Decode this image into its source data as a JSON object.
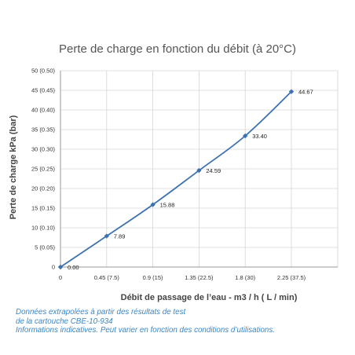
{
  "chart_data": {
    "type": "line",
    "title": "Perte de charge en fonction du débit (à 20°C)",
    "xlabel": "Débit de passage de l’eau - m3 / h ( L / min)",
    "ylabel": "Perte de charge kPa (bar)",
    "categories": [
      "0",
      "0.45 (7.5)",
      "0.9 (15)",
      "1.35 (22.5)",
      "1.8 (30)",
      "2.25 (37.5)"
    ],
    "x": [
      0,
      0.45,
      0.9,
      1.35,
      1.8,
      2.25
    ],
    "xlim": [
      0,
      2.25
    ],
    "ylim": [
      0,
      50
    ],
    "yticks": [
      "0",
      "5 (0.05)",
      "10 (0.10)",
      "15 (0.15)",
      "20 (0.20)",
      "25 (0.25)",
      "30 (0.30)",
      "35 (0.35)",
      "40 (0.40)",
      "45 (0.45)",
      "50 (0.50)"
    ],
    "grid": true,
    "series": [
      {
        "values": [
          0,
          7.89,
          15.88,
          24.59,
          33.4,
          44.67
        ],
        "labels": [
          "0.00",
          "7.89",
          "15.88",
          "24.59",
          "33.40",
          "44.67"
        ],
        "color": "#3d72b0"
      }
    ]
  },
  "note": {
    "line1": "Données extrapolées à partir des résultats de test",
    "line2": "de la cartouche CBE-10-934",
    "line3": "Informations indicatives. Peut varier en fonction des conditions d’utilisations."
  },
  "colors": {
    "grid": "#d6d6d6",
    "line": "#3d72b0",
    "note": "#3b86c6"
  }
}
